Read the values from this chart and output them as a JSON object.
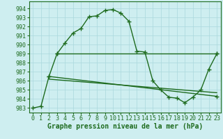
{
  "main_line_x": [
    0,
    1,
    2,
    3,
    4,
    5,
    6,
    7,
    8,
    9,
    10,
    11,
    12,
    13,
    14,
    15,
    16,
    17,
    18,
    19,
    20,
    21,
    22,
    23
  ],
  "main_line_y": [
    983.0,
    983.2,
    986.5,
    989.0,
    990.2,
    991.3,
    991.8,
    993.1,
    993.2,
    993.8,
    993.9,
    993.5,
    992.6,
    989.3,
    989.2,
    986.0,
    985.0,
    984.2,
    984.1,
    983.6,
    984.2,
    985.0,
    987.3,
    989.0
  ],
  "horiz_line_x": [
    3,
    23
  ],
  "horiz_line_y": [
    989.0,
    989.0
  ],
  "trend_line_x": [
    2,
    23
  ],
  "trend_line_y": [
    986.5,
    984.3
  ],
  "trend_line2_x": [
    2,
    23
  ],
  "trend_line2_y": [
    986.2,
    984.7
  ],
  "background_color": "#ceeef0",
  "grid_color": "#aad8dc",
  "line_color": "#1e6b1e",
  "xlabel": "Graphe pression niveau de la mer (hPa)",
  "ylim": [
    982.5,
    994.8
  ],
  "xlim": [
    -0.5,
    23.5
  ],
  "yticks": [
    983,
    984,
    985,
    986,
    987,
    988,
    989,
    990,
    991,
    992,
    993,
    994
  ],
  "xticks": [
    0,
    1,
    2,
    3,
    4,
    5,
    6,
    7,
    8,
    9,
    10,
    11,
    12,
    13,
    14,
    15,
    16,
    17,
    18,
    19,
    20,
    21,
    22,
    23
  ],
  "marker_size": 4,
  "line_width": 1.0,
  "xlabel_fontsize": 7,
  "tick_fontsize": 6
}
